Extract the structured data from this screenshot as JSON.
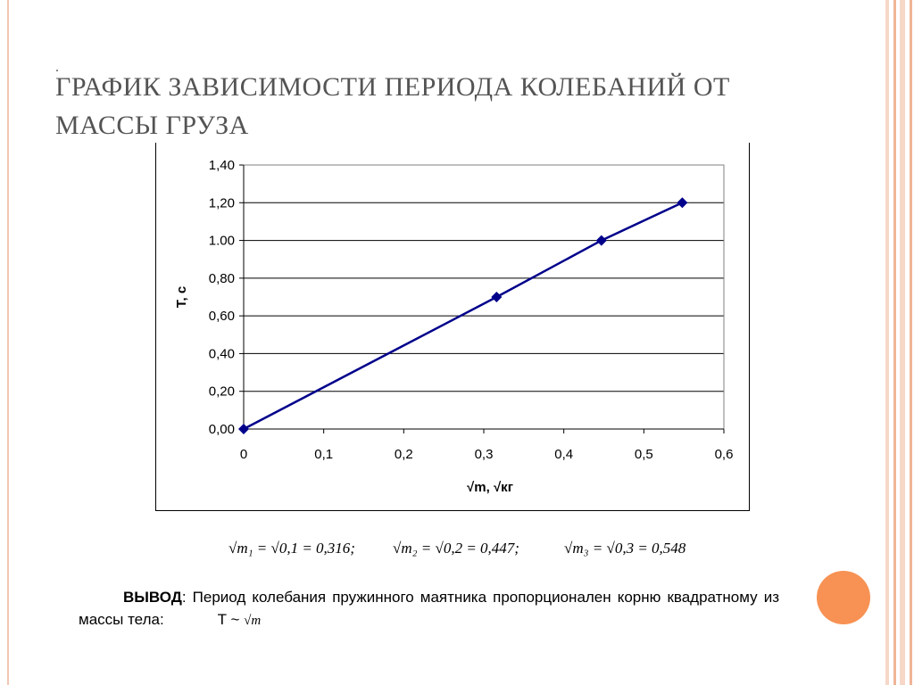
{
  "slide": {
    "title_marker": ".",
    "title": "ГРАФИК ЗАВИСИМОСТИ ПЕРИОДА КОЛЕБАНИЙ ОТ МАССЫ ГРУЗА",
    "formulas": [
      "√m₁ = √0,1 = 0,316;",
      "√m₂ = √0,2 = 0,447;",
      "√m₃ = √0,3 = 0,548"
    ],
    "conclusion_label": "ВЫВОД",
    "conclusion_text": ": Период колебания пружинного маятника пропорционален корню квадратному из массы тела:",
    "conclusion_relation": "T ~",
    "conclusion_sqrt": "√m",
    "accent_color": "#f79254"
  },
  "chart_data": {
    "type": "line",
    "xlabel": "√m, √кг",
    "ylabel": "Т, с",
    "xlim": [
      0,
      0.6
    ],
    "ylim": [
      0,
      1.4
    ],
    "x_ticks": [
      "0",
      "0,1",
      "0,2",
      "0,3",
      "0,4",
      "0,5",
      "0,6"
    ],
    "y_ticks": [
      "0,00",
      "0,20",
      "0,40",
      "0,60",
      "0,80",
      "1.00",
      "1,20",
      "1,40"
    ],
    "grid": "horizontal",
    "series": [
      {
        "x": [
          0,
          0.316,
          0.447,
          0.548
        ],
        "y": [
          0,
          0.7,
          1.0,
          1.2
        ],
        "color": "#00008b",
        "marker": "diamond"
      }
    ]
  }
}
